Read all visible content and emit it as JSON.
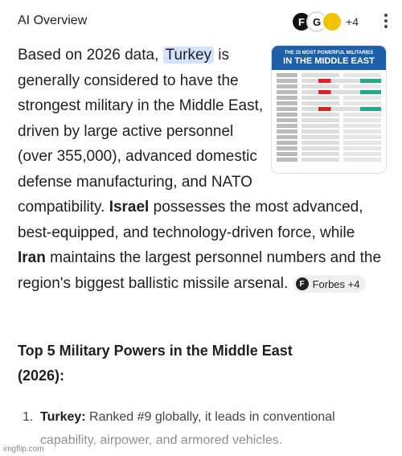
{
  "header": {
    "title": "AI Overview",
    "source_icons": [
      "F",
      "G"
    ],
    "source_count": "+4"
  },
  "overview": {
    "segments": [
      "Based on 2026 data, ",
      "Turkey",
      " is generally considered to have the strongest military in the Middle East, driven by large active personnel (over 355,000), advanced domestic defense manufacturing, and NATO compatibility. ",
      "Israel",
      " possesses the most advanced, best-equipped, and technology-driven force, while ",
      "Iran",
      " maintains the largest personnel numbers and the region's biggest ballistic missile arsenal. "
    ],
    "citation": {
      "icon": "F",
      "label": "Forbes +4"
    },
    "image": {
      "title_lines": [
        "THE 15 MOST POWERFUL MILITARIES",
        "IN THE MIDDLE EAST"
      ]
    }
  },
  "section": {
    "heading": "Top 5 Military Powers in the Middle East (2026):",
    "items": [
      {
        "marker": "1.",
        "name": "Turkey:",
        "text": " Ranked #9 globally, it leads in conventional capability, airpower, and armored vehicles."
      }
    ]
  },
  "watermark": "imgflip.com"
}
